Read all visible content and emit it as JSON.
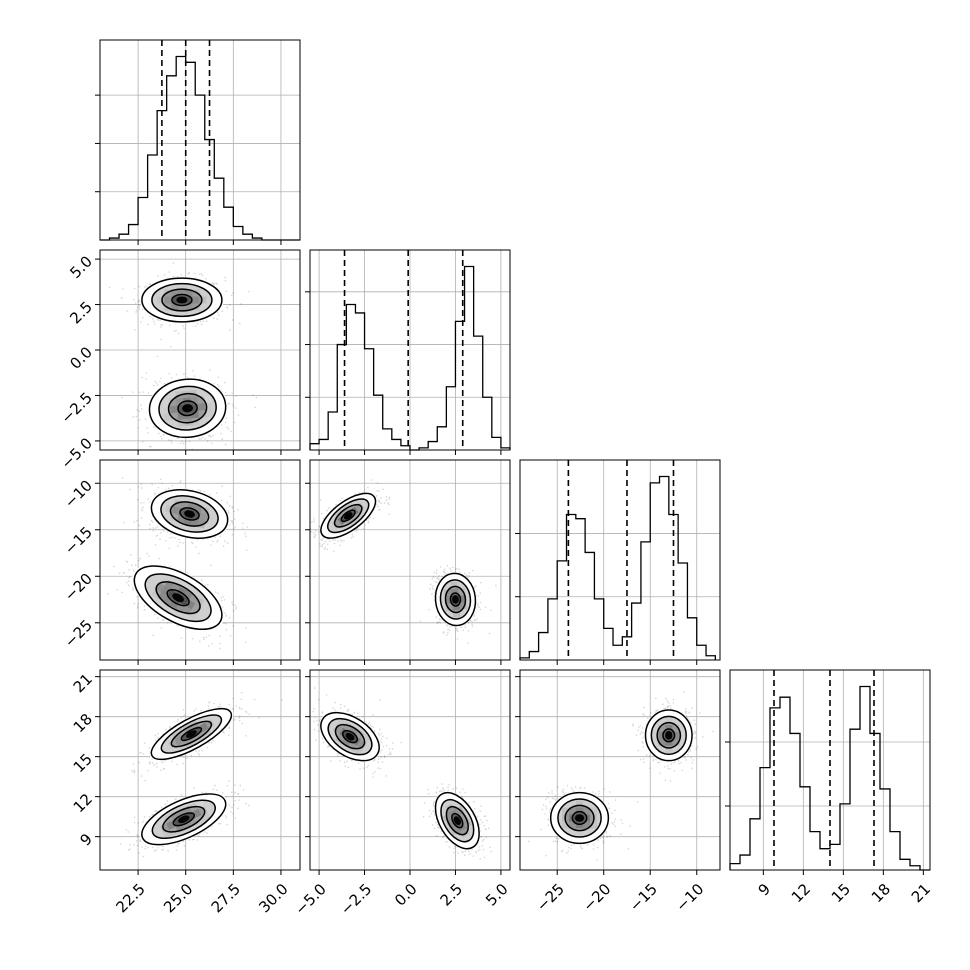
{
  "chart_data": {
    "type": "corner",
    "grid": true,
    "parameters": [
      {
        "range": [
          20.5,
          31.0
        ],
        "ticks": [
          22.5,
          25.0,
          27.5,
          30.0
        ],
        "tick_labels": [
          "22.5",
          "25.0",
          "27.5",
          "30.0"
        ],
        "quantiles": [
          23.75,
          25.0,
          26.25
        ],
        "hist_edges": [
          20.5,
          21.0,
          21.5,
          22.0,
          22.5,
          23.0,
          23.5,
          24.0,
          24.5,
          25.0,
          25.5,
          26.0,
          26.5,
          27.0,
          27.5,
          28.0,
          28.5,
          29.0,
          29.5,
          30.0,
          30.5,
          31.0
        ],
        "hist_counts": [
          0,
          1,
          3,
          8,
          22,
          44,
          67,
          85,
          95,
          92,
          75,
          52,
          32,
          17,
          7,
          3,
          1,
          0,
          0,
          0,
          0
        ],
        "hist_yticks": [
          25,
          50,
          75
        ]
      },
      {
        "range": [
          -5.5,
          5.5
        ],
        "ticks": [
          -5.0,
          -2.5,
          0.0,
          2.5,
          5.0
        ],
        "tick_labels": [
          "−5.0",
          "−2.5",
          "0.0",
          "2.5",
          "5.0"
        ],
        "quantiles": [
          -3.6,
          -0.1,
          2.9
        ],
        "hist_edges": [
          -5.5,
          -5.0,
          -4.5,
          -4.0,
          -3.5,
          -3.0,
          -2.5,
          -2.0,
          -1.5,
          -1.0,
          -0.5,
          0.0,
          0.5,
          1.0,
          1.5,
          2.0,
          2.5,
          3.0,
          3.5,
          4.0,
          4.5,
          5.0,
          5.5
        ],
        "hist_counts": [
          3,
          5,
          18,
          50,
          69,
          65,
          48,
          26,
          10,
          5,
          2,
          0,
          1,
          4,
          11,
          30,
          61,
          87,
          54,
          25,
          6,
          1
        ],
        "hist_yticks": [
          25,
          50,
          75
        ]
      },
      {
        "range": [
          -29.0,
          -7.5
        ],
        "ticks": [
          -25,
          -20,
          -15,
          -10
        ],
        "tick_labels": [
          "−25",
          "−20",
          "−15",
          "−10"
        ],
        "quantiles": [
          -23.8,
          -17.5,
          -12.5
        ],
        "hist_edges": [
          -29.0,
          -28.0,
          -27.0,
          -26.0,
          -25.0,
          -24.0,
          -23.0,
          -22.0,
          -21.0,
          -20.0,
          -19.0,
          -18.0,
          -17.0,
          -16.0,
          -15.0,
          -14.0,
          -13.0,
          -12.0,
          -11.0,
          -10.0,
          -9.0,
          -8.0
        ],
        "hist_counts": [
          1,
          4,
          13,
          29,
          47,
          69,
          67,
          51,
          29,
          15,
          7,
          11,
          27,
          56,
          84,
          87,
          69,
          46,
          20,
          7,
          2
        ],
        "hist_yticks": [
          30,
          60
        ]
      },
      {
        "range": [
          6.5,
          21.5
        ],
        "ticks": [
          9,
          12,
          15,
          18,
          21
        ],
        "tick_labels": [
          "9",
          "12",
          "15",
          "18",
          "21"
        ],
        "quantiles": [
          9.8,
          14.0,
          17.3
        ],
        "hist_edges": [
          6.5,
          7.25,
          8.0,
          8.75,
          9.5,
          10.25,
          11.0,
          11.75,
          12.5,
          13.25,
          14.0,
          14.75,
          15.5,
          16.25,
          17.0,
          17.75,
          18.5,
          19.25,
          20.0,
          20.75,
          21.5
        ],
        "hist_counts": [
          3,
          7,
          24,
          48,
          76,
          81,
          64,
          39,
          18,
          10,
          12,
          31,
          66,
          86,
          64,
          38,
          18,
          5,
          2,
          0
        ],
        "hist_yticks": [
          30,
          60
        ]
      }
    ],
    "pairs": [
      {
        "xi": 0,
        "yi": 1,
        "modes": [
          {
            "mean": [
              24.8,
              2.75
            ],
            "sx": 1.05,
            "sy": 0.6,
            "rho": 0.0,
            "n": 700
          },
          {
            "mean": [
              25.1,
              -3.2
            ],
            "sx": 1.0,
            "sy": 0.8,
            "rho": 0.05,
            "n": 650
          }
        ]
      },
      {
        "xi": 0,
        "yi": 2,
        "modes": [
          {
            "mean": [
              25.2,
              -13.3
            ],
            "sx": 1.0,
            "sy": 1.3,
            "rho": -0.25,
            "n": 700
          },
          {
            "mean": [
              24.6,
              -22.3
            ],
            "sx": 1.15,
            "sy": 1.7,
            "rho": -0.55,
            "n": 650
          }
        ]
      },
      {
        "xi": 0,
        "yi": 3,
        "modes": [
          {
            "mean": [
              25.3,
              16.7
            ],
            "sx": 1.05,
            "sy": 0.95,
            "rho": 0.75,
            "n": 700
          },
          {
            "mean": [
              24.9,
              10.3
            ],
            "sx": 1.1,
            "sy": 0.95,
            "rho": 0.6,
            "n": 650
          }
        ]
      },
      {
        "xi": 1,
        "yi": 2,
        "modes": [
          {
            "mean": [
              -3.4,
              -13.5
            ],
            "sx": 0.75,
            "sy": 1.2,
            "rho": 0.65,
            "n": 700
          },
          {
            "mean": [
              2.5,
              -22.5
            ],
            "sx": 0.55,
            "sy": 1.4,
            "rho": -0.05,
            "n": 650
          }
        ]
      },
      {
        "xi": 1,
        "yi": 3,
        "modes": [
          {
            "mean": [
              -3.3,
              16.5
            ],
            "sx": 0.8,
            "sy": 0.9,
            "rho": -0.45,
            "n": 700
          },
          {
            "mean": [
              2.6,
              10.2
            ],
            "sx": 0.6,
            "sy": 1.05,
            "rho": -0.45,
            "n": 650
          }
        ]
      },
      {
        "xi": 2,
        "yi": 3,
        "modes": [
          {
            "mean": [
              -13.0,
              16.6
            ],
            "sx": 1.25,
            "sy": 0.95,
            "rho": 0.0,
            "n": 700
          },
          {
            "mean": [
              -22.6,
              10.4
            ],
            "sx": 1.55,
            "sy": 0.95,
            "rho": 0.0,
            "n": 650
          }
        ]
      }
    ]
  }
}
